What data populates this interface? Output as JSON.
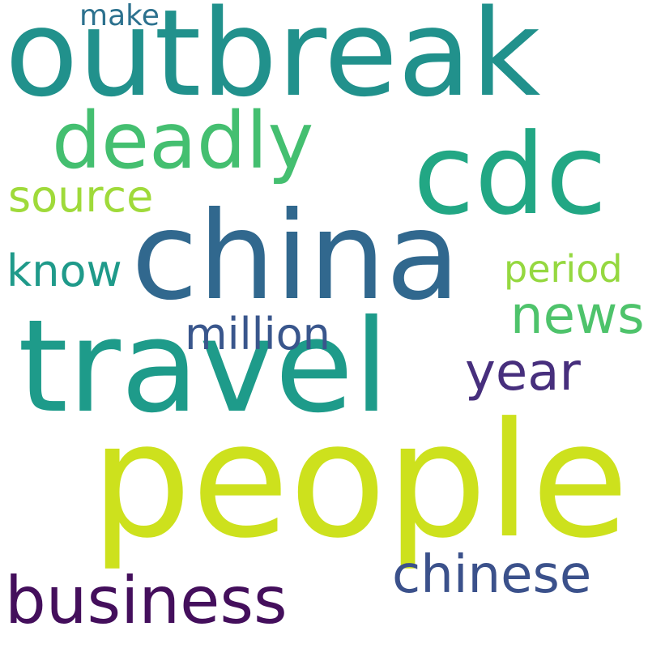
{
  "words": [
    {
      "text": "outbreak",
      "color": "#21918c"
    },
    {
      "text": "people",
      "color": "#cde11d"
    },
    {
      "text": "travel",
      "color": "#1e9b8a"
    },
    {
      "text": "china",
      "color": "#31688e"
    },
    {
      "text": "cdc",
      "color": "#22a784"
    },
    {
      "text": "deadly",
      "color": "#44bf70"
    },
    {
      "text": "business",
      "color": "#440f5c"
    },
    {
      "text": "chinese",
      "color": "#3b518b"
    },
    {
      "text": "news",
      "color": "#4ec36b"
    },
    {
      "text": "year",
      "color": "#472f7d"
    },
    {
      "text": "million",
      "color": "#39568c"
    },
    {
      "text": "source",
      "color": "#9fda3a"
    },
    {
      "text": "know",
      "color": "#1f9a8a"
    },
    {
      "text": "period",
      "color": "#95d840"
    },
    {
      "text": "make",
      "color": "#2c718e"
    }
  ]
}
